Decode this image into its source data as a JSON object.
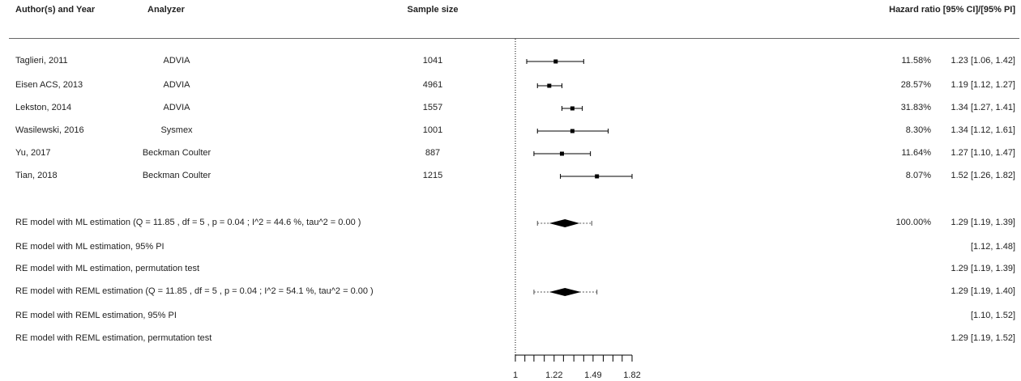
{
  "chart_data": {
    "type": "forest",
    "headers": {
      "study": "Author(s) and Year",
      "analyzer": "Analyzer",
      "sample_size": "Sample size",
      "effect": "Hazard ratio [95% CI]/[95% PI]"
    },
    "axis": {
      "ticks": [
        1,
        1.22,
        1.49,
        1.82
      ],
      "tick_labels": [
        "1",
        "1.22",
        "1.49",
        "1.82"
      ],
      "reference_line": 1,
      "scale": "log"
    },
    "studies": [
      {
        "study": "Taglieri, 2011",
        "analyzer": "ADVIA",
        "n": "1041",
        "hr": 1.23,
        "lo": 1.06,
        "hi": 1.42,
        "weight": "11.58%",
        "text": "1.23 [1.06, 1.42]"
      },
      {
        "study": "Eisen ACS, 2013",
        "analyzer": "ADVIA",
        "n": "4961",
        "hr": 1.19,
        "lo": 1.12,
        "hi": 1.27,
        "weight": "28.57%",
        "text": "1.19 [1.12, 1.27]"
      },
      {
        "study": "Lekston, 2014",
        "analyzer": "ADVIA",
        "n": "1557",
        "hr": 1.34,
        "lo": 1.27,
        "hi": 1.41,
        "weight": "31.83%",
        "text": "1.34 [1.27, 1.41]"
      },
      {
        "study": "Wasilewski, 2016",
        "analyzer": "Sysmex",
        "n": "1001",
        "hr": 1.34,
        "lo": 1.12,
        "hi": 1.61,
        "weight": "8.30%",
        "text": "1.34 [1.12, 1.61]"
      },
      {
        "study": "Yu, 2017",
        "analyzer": "Beckman Coulter",
        "n": "887",
        "hr": 1.27,
        "lo": 1.1,
        "hi": 1.47,
        "weight": "11.64%",
        "text": "1.27 [1.10, 1.47]"
      },
      {
        "study": "Tian, 2018",
        "analyzer": "Beckman Coulter",
        "n": "1215",
        "hr": 1.52,
        "lo": 1.26,
        "hi": 1.82,
        "weight": "8.07%",
        "text": "1.52 [1.26, 1.82]"
      }
    ],
    "summaries": [
      {
        "label": "RE model with ML estimation  (Q =  11.85 , df =  5 , p = 0.04 ;  I^2 =  44.6 %,   tau^2 =  0.00 )",
        "kind": "diamond",
        "hr": 1.29,
        "lo": 1.19,
        "hi": 1.39,
        "pi_lo": 1.12,
        "pi_hi": 1.48,
        "weight": "100.00%",
        "text": "1.29 [1.19, 1.39]"
      },
      {
        "label": "RE model with ML estimation, 95% PI",
        "kind": "text",
        "weight": "",
        "text": "[1.12, 1.48]"
      },
      {
        "label": "RE model with ML estimation, permutation test",
        "kind": "text",
        "weight": "",
        "text": "1.29 [1.19, 1.39]"
      },
      {
        "label": "RE model with REML estimation  (Q =  11.85 , df =  5 , p = 0.04 ;  I^2 =  54.1 %,   tau^2 =  0.00 )",
        "kind": "diamond",
        "hr": 1.29,
        "lo": 1.19,
        "hi": 1.4,
        "pi_lo": 1.1,
        "pi_hi": 1.52,
        "weight": "",
        "text": "1.29 [1.19, 1.40]"
      },
      {
        "label": "RE model with REML estimation, 95% PI",
        "kind": "text",
        "weight": "",
        "text": "[1.10, 1.52]"
      },
      {
        "label": "RE model with REML estimation, permutation test",
        "kind": "text",
        "weight": "",
        "text": "1.29 [1.19, 1.52]"
      }
    ]
  }
}
